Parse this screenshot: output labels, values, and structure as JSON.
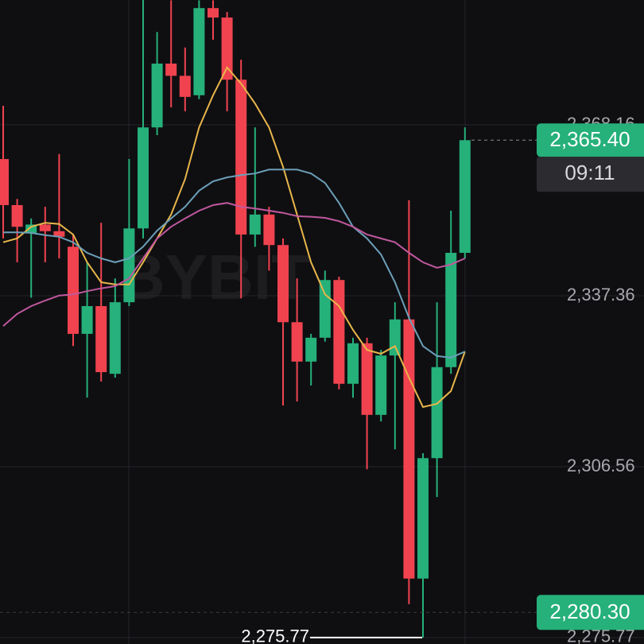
{
  "chart_data": {
    "type": "candlestick",
    "watermark": "BYBIT",
    "ylim": [
      2274.61,
      2390.66
    ],
    "yticks": [
      {
        "value": 2368.16,
        "label": "2,368.16"
      },
      {
        "value": 2337.36,
        "label": "2,337.36"
      },
      {
        "value": 2306.56,
        "label": "2,306.56"
      },
      {
        "value": 2275.77,
        "label": "2,275.77"
      }
    ],
    "grid": true,
    "up_color": "#26b07a",
    "down_color": "#f0434f",
    "candles": {
      "open": [
        2362.0,
        2353.7,
        2348.7,
        2350.2,
        2349.0,
        2346.2,
        2330.5,
        2335.5,
        2323.3,
        2336.2,
        2349.5,
        2367.7,
        2379.2,
        2377.0,
        2373.5,
        2389.2,
        2387.5,
        2376.3,
        2348.4,
        2352.0,
        2346.5,
        2332.6,
        2325.5,
        2329.8,
        2340.2,
        2321.5,
        2328.8,
        2315.9,
        2326.6,
        2333.1,
        2286.4,
        2308.1,
        2324.5,
        2345.1
      ],
      "high": [
        2371.6,
        2354.8,
        2351.3,
        2353.4,
        2362.9,
        2348.4,
        2343.4,
        2350.5,
        2340.5,
        2362.0,
        2390.7,
        2384.9,
        2390.6,
        2382.1,
        2390.6,
        2390.6,
        2388.5,
        2379.9,
        2367.7,
        2353.4,
        2347.7,
        2340.5,
        2330.5,
        2341.9,
        2340.8,
        2329.8,
        2329.8,
        2327.6,
        2336.2,
        2354.6,
        2309.0,
        2336.2,
        2352.7,
        2367.7
      ],
      "low": [
        2347.7,
        2343.4,
        2337.0,
        2343.4,
        2344.1,
        2328.3,
        2319.0,
        2321.9,
        2322.6,
        2335.5,
        2347.7,
        2366.3,
        2371.3,
        2370.6,
        2372.8,
        2383.5,
        2370.6,
        2336.9,
        2346.2,
        2341.9,
        2317.6,
        2318.3,
        2321.2,
        2329.1,
        2320.5,
        2319.0,
        2306.1,
        2314.7,
        2309.7,
        2281.8,
        2275.77,
        2301.1,
        2323.3,
        2344.1
      ],
      "close": [
        2353.7,
        2349.8,
        2350.2,
        2349.0,
        2348.0,
        2330.5,
        2335.5,
        2323.6,
        2336.2,
        2349.5,
        2367.7,
        2379.2,
        2377.0,
        2373.2,
        2389.2,
        2387.5,
        2376.3,
        2348.4,
        2352.0,
        2346.5,
        2332.6,
        2325.5,
        2329.8,
        2340.2,
        2321.5,
        2328.8,
        2315.9,
        2326.6,
        2333.1,
        2286.4,
        2308.1,
        2324.5,
        2345.1,
        2365.4
      ]
    },
    "series": [
      {
        "color": "#e8b64a",
        "values": [
          2347.0,
          2347.7,
          2349.8,
          2350.5,
          2350.3,
          2348.4,
          2343.4,
          2339.8,
          2339.4,
          2339.4,
          2343.4,
          2347.7,
          2352.0,
          2358.4,
          2367.7,
          2373.5,
          2378.5,
          2375.6,
          2372.0,
          2367.7,
          2360.6,
          2352.0,
          2343.4,
          2337.6,
          2335.5,
          2331.2,
          2327.6,
          2326.9,
          2328.3,
          2322.6,
          2317.3,
          2317.9,
          2320.2,
          2327.3
        ]
      },
      {
        "color": "#6c9fb8",
        "values": [
          2348.8,
          2348.8,
          2348.7,
          2348.3,
          2348.0,
          2347.0,
          2345.1,
          2344.1,
          2343.4,
          2344.1,
          2346.2,
          2349.1,
          2351.3,
          2353.4,
          2356.3,
          2358.0,
          2358.7,
          2359.1,
          2359.4,
          2360.1,
          2360.1,
          2360.1,
          2359.4,
          2357.7,
          2354.1,
          2349.8,
          2347.7,
          2344.8,
          2339.8,
          2333.4,
          2328.3,
          2326.5,
          2326.2,
          2327.3
        ]
      },
      {
        "color": "#c0589e",
        "values": [
          2331.9,
          2334.1,
          2335.5,
          2336.5,
          2337.4,
          2337.6,
          2338.2,
          2338.7,
          2339.1,
          2340.5,
          2344.1,
          2347.7,
          2349.8,
          2351.3,
          2352.7,
          2353.7,
          2354.1,
          2353.4,
          2353.1,
          2352.7,
          2352.3,
          2351.7,
          2351.6,
          2351.4,
          2350.8,
          2349.8,
          2348.4,
          2347.7,
          2347.0,
          2345.1,
          2343.4,
          2342.4,
          2343.0,
          2344.1
        ]
      }
    ],
    "last_price": {
      "value": 2365.4,
      "label": "2,365.40"
    },
    "countdown": "09:11",
    "marker_price": {
      "value": 2280.3,
      "label": "2,280.30"
    },
    "low_annotation": {
      "value": 2275.77,
      "label": "2,275.77"
    }
  }
}
